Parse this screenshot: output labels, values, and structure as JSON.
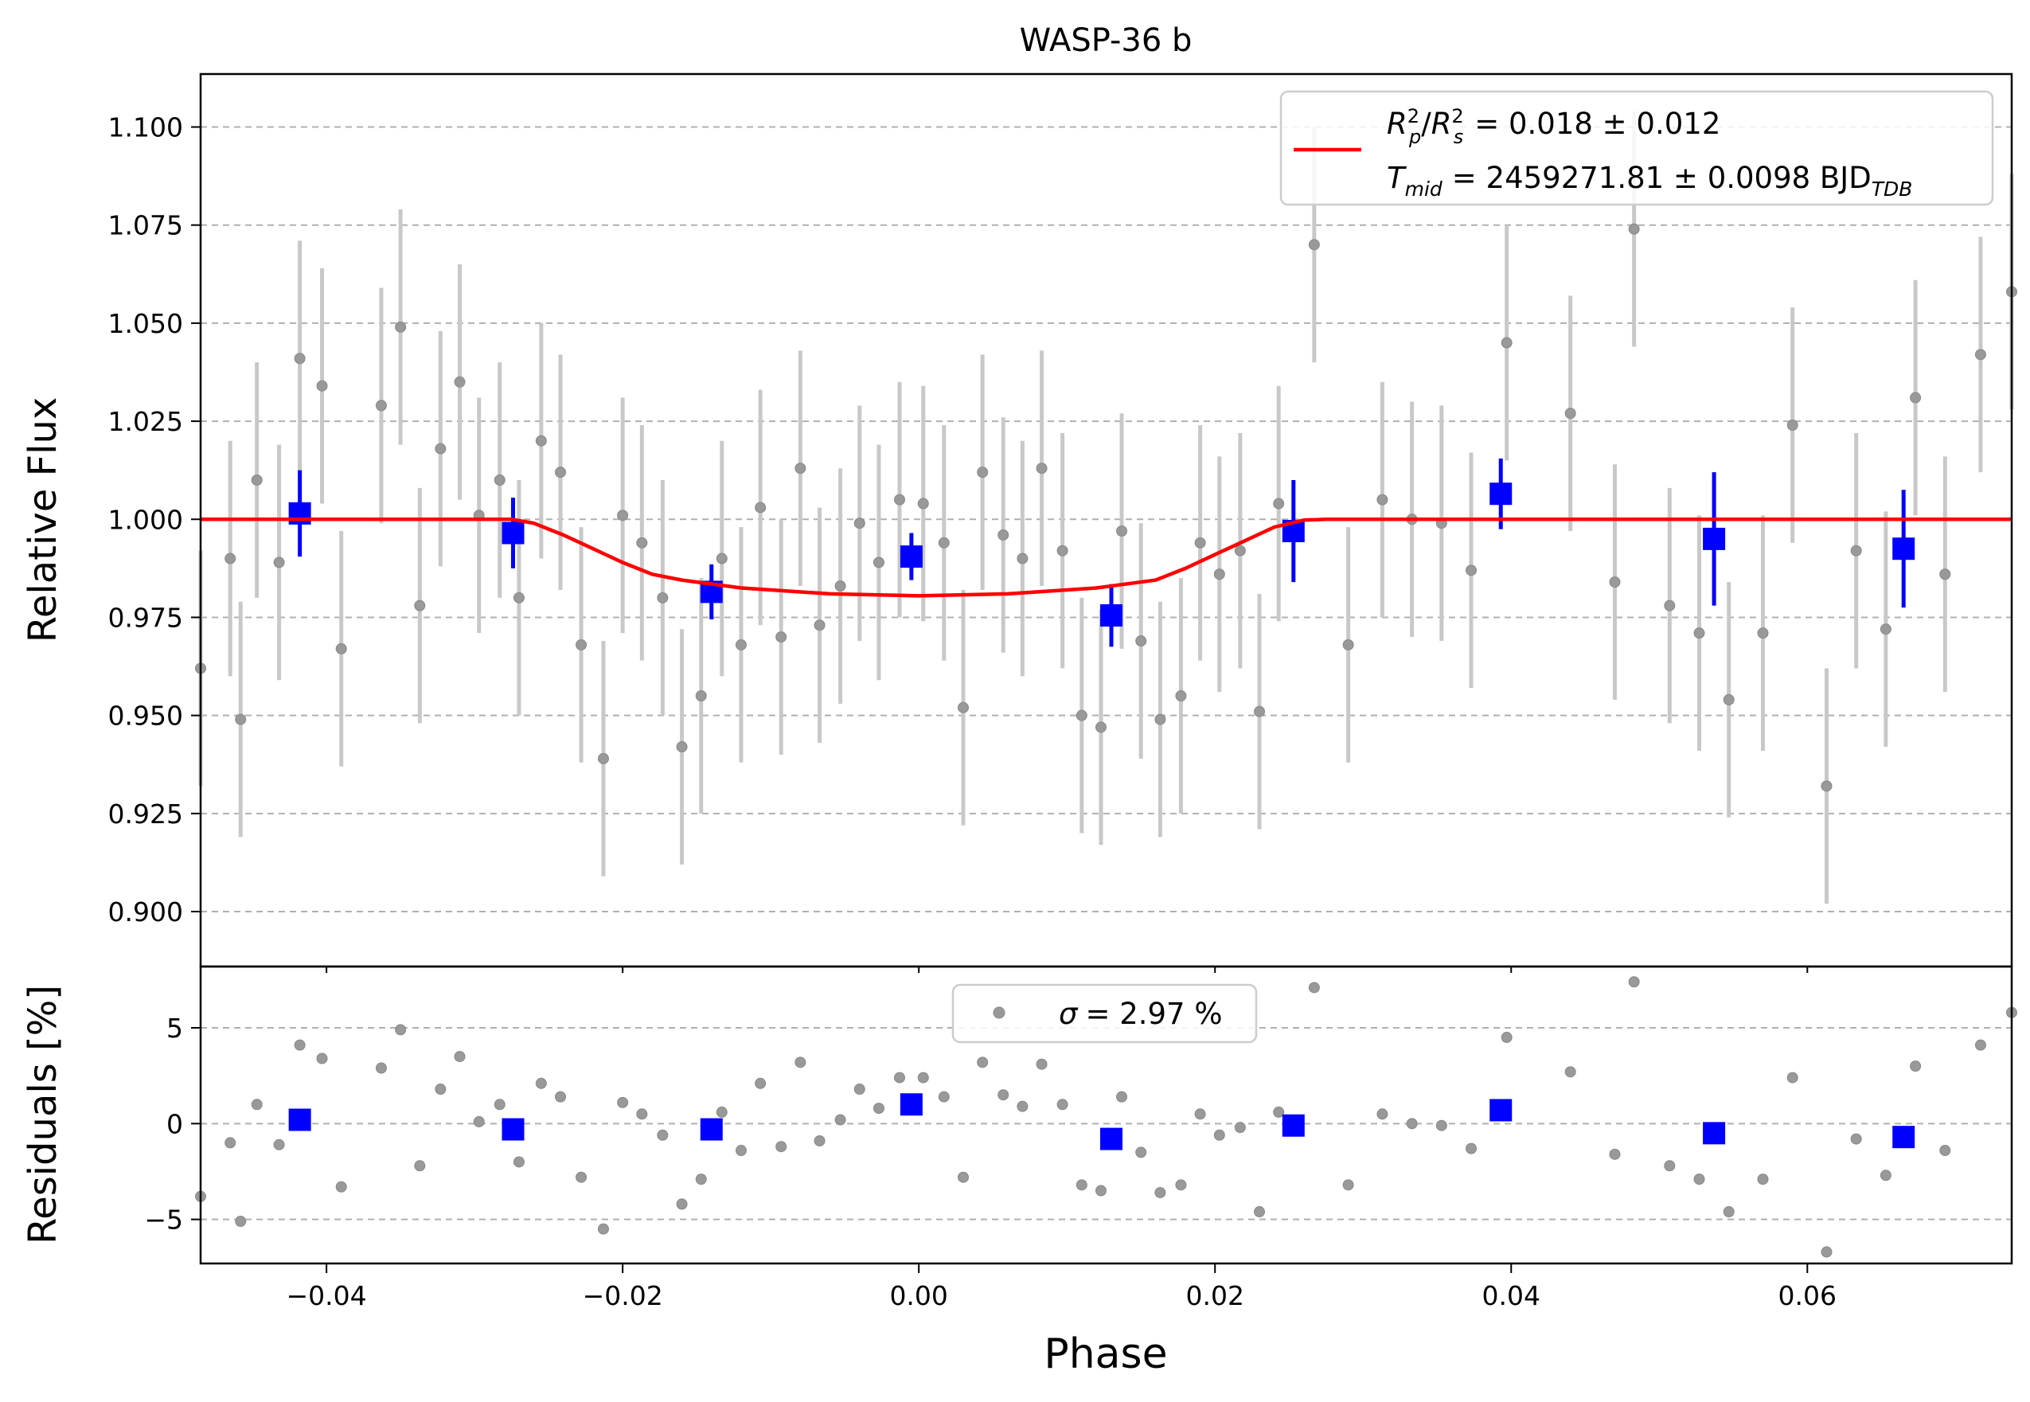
{
  "chart_data": [
    {
      "type": "scatter",
      "title": "WASP-36 b",
      "xlabel": "",
      "ylabel": "Relative Flux",
      "xlim": [
        -0.0485,
        0.0738
      ],
      "ylim": [
        0.886,
        1.1135
      ],
      "grid": "horizontal-dashed",
      "legend_position": "top-right",
      "xticks": [
        -0.04,
        -0.02,
        0.0,
        0.02,
        0.04,
        0.06
      ],
      "yticks": [
        0.9,
        0.925,
        0.95,
        0.975,
        1.0,
        1.025,
        1.05,
        1.075,
        1.1
      ],
      "ytick_labels": [
        "0.900",
        "0.925",
        "0.950",
        "0.975",
        "1.000",
        "1.025",
        "1.050",
        "1.075",
        "1.100"
      ],
      "legend_line1": "= 0.018 ± 0.012",
      "legend_line2": "= 2459271.81 ± 0.0098 BJD",
      "legend_sub": "TDB",
      "raw_color": "#999999",
      "raw_err_color": "#c8c8c8",
      "binned_color": "#0000ff",
      "model_color": "#ff0000",
      "raw_points": [
        [
          -0.0485,
          0.962,
          0.03
        ],
        [
          -0.0465,
          0.99,
          0.03
        ],
        [
          -0.0458,
          0.949,
          0.03
        ],
        [
          -0.0447,
          1.01,
          0.03
        ],
        [
          -0.0432,
          0.989,
          0.03
        ],
        [
          -0.0418,
          1.041,
          0.03
        ],
        [
          -0.0403,
          1.034,
          0.03
        ],
        [
          -0.039,
          0.967,
          0.03
        ],
        [
          -0.0363,
          1.029,
          0.03
        ],
        [
          -0.035,
          1.049,
          0.03
        ],
        [
          -0.0337,
          0.978,
          0.03
        ],
        [
          -0.0323,
          1.018,
          0.03
        ],
        [
          -0.031,
          1.035,
          0.03
        ],
        [
          -0.0297,
          1.001,
          0.03
        ],
        [
          -0.0283,
          1.01,
          0.03
        ],
        [
          -0.027,
          0.98,
          0.03
        ],
        [
          -0.0255,
          1.02,
          0.03
        ],
        [
          -0.0242,
          1.012,
          0.03
        ],
        [
          -0.0228,
          0.968,
          0.03
        ],
        [
          -0.0213,
          0.939,
          0.03
        ],
        [
          -0.02,
          1.001,
          0.03
        ],
        [
          -0.0187,
          0.994,
          0.03
        ],
        [
          -0.0173,
          0.98,
          0.03
        ],
        [
          -0.016,
          0.942,
          0.03
        ],
        [
          -0.0147,
          0.955,
          0.03
        ],
        [
          -0.0133,
          0.99,
          0.03
        ],
        [
          -0.012,
          0.968,
          0.03
        ],
        [
          -0.0107,
          1.003,
          0.03
        ],
        [
          -0.0093,
          0.97,
          0.03
        ],
        [
          -0.008,
          1.013,
          0.03
        ],
        [
          -0.0067,
          0.973,
          0.03
        ],
        [
          -0.0053,
          0.983,
          0.03
        ],
        [
          -0.004,
          0.999,
          0.03
        ],
        [
          -0.0027,
          0.989,
          0.03
        ],
        [
          -0.0013,
          1.005,
          0.03
        ],
        [
          0.0003,
          1.004,
          0.03
        ],
        [
          0.0017,
          0.994,
          0.03
        ],
        [
          0.003,
          0.952,
          0.03
        ],
        [
          0.0043,
          1.012,
          0.03
        ],
        [
          0.0057,
          0.996,
          0.03
        ],
        [
          0.007,
          0.99,
          0.03
        ],
        [
          0.0083,
          1.013,
          0.03
        ],
        [
          0.0097,
          0.992,
          0.03
        ],
        [
          0.011,
          0.95,
          0.03
        ],
        [
          0.0123,
          0.947,
          0.03
        ],
        [
          0.0137,
          0.997,
          0.03
        ],
        [
          0.015,
          0.969,
          0.03
        ],
        [
          0.0163,
          0.949,
          0.03
        ],
        [
          0.0177,
          0.955,
          0.03
        ],
        [
          0.019,
          0.994,
          0.03
        ],
        [
          0.0203,
          0.986,
          0.03
        ],
        [
          0.0217,
          0.992,
          0.03
        ],
        [
          0.023,
          0.951,
          0.03
        ],
        [
          0.0243,
          1.004,
          0.03
        ],
        [
          0.0267,
          1.07,
          0.03
        ],
        [
          0.029,
          0.968,
          0.03
        ],
        [
          0.0313,
          1.005,
          0.03
        ],
        [
          0.0333,
          1.0,
          0.03
        ],
        [
          0.0353,
          0.999,
          0.03
        ],
        [
          0.0373,
          0.987,
          0.03
        ],
        [
          0.0397,
          1.045,
          0.03
        ],
        [
          0.044,
          1.027,
          0.03
        ],
        [
          0.047,
          0.984,
          0.03
        ],
        [
          0.0483,
          1.074,
          0.03
        ],
        [
          0.0507,
          0.978,
          0.03
        ],
        [
          0.0527,
          0.971,
          0.03
        ],
        [
          0.0547,
          0.954,
          0.03
        ],
        [
          0.057,
          0.971,
          0.03
        ],
        [
          0.059,
          1.024,
          0.03
        ],
        [
          0.0613,
          0.932,
          0.03
        ],
        [
          0.0633,
          0.992,
          0.03
        ],
        [
          0.0653,
          0.972,
          0.03
        ],
        [
          0.0673,
          1.031,
          0.03
        ],
        [
          0.0693,
          0.986,
          0.03
        ],
        [
          0.0717,
          1.042,
          0.03
        ],
        [
          0.0738,
          1.058,
          0.03
        ]
      ],
      "binned_points": [
        [
          -0.0418,
          1.0015,
          0.011
        ],
        [
          -0.0274,
          0.9965,
          0.009
        ],
        [
          -0.014,
          0.9815,
          0.007
        ],
        [
          -0.0005,
          0.9905,
          0.006
        ],
        [
          0.013,
          0.9755,
          0.008
        ],
        [
          0.0253,
          0.997,
          0.013
        ],
        [
          0.0393,
          1.0065,
          0.009
        ],
        [
          0.0537,
          0.995,
          0.017
        ],
        [
          0.0665,
          0.9925,
          0.015
        ]
      ],
      "model_curve": [
        [
          -0.0485,
          1.0
        ],
        [
          -0.0275,
          1.0
        ],
        [
          -0.026,
          0.999
        ],
        [
          -0.024,
          0.996
        ],
        [
          -0.022,
          0.9925
        ],
        [
          -0.02,
          0.989
        ],
        [
          -0.018,
          0.986
        ],
        [
          -0.016,
          0.9845
        ],
        [
          -0.012,
          0.9825
        ],
        [
          -0.006,
          0.981
        ],
        [
          0.0,
          0.9805
        ],
        [
          0.006,
          0.981
        ],
        [
          0.012,
          0.9825
        ],
        [
          0.016,
          0.9845
        ],
        [
          0.018,
          0.9875
        ],
        [
          0.02,
          0.991
        ],
        [
          0.022,
          0.9945
        ],
        [
          0.024,
          0.998
        ],
        [
          0.026,
          0.9998
        ],
        [
          0.0275,
          1.0
        ],
        [
          0.0738,
          1.0
        ]
      ]
    },
    {
      "type": "scatter",
      "title": "",
      "xlabel": "Phase",
      "ylabel": "Residuals [%]",
      "xlim": [
        -0.0485,
        0.0738
      ],
      "ylim": [
        -7.3,
        8.2
      ],
      "grid": "horizontal-dashed",
      "legend_position": "top-center",
      "legend_label": "= 2.97 %",
      "xticks": [
        -0.04,
        -0.02,
        0.0,
        0.02,
        0.04,
        0.06
      ],
      "xtick_labels": [
        "−0.04",
        "−0.02",
        "0.00",
        "0.02",
        "0.04",
        "0.06"
      ],
      "yticks": [
        -5,
        0,
        5
      ],
      "ytick_labels": [
        "−5",
        "0",
        "5"
      ],
      "residual_points": [
        [
          -0.0485,
          -3.8
        ],
        [
          -0.0465,
          -1.0
        ],
        [
          -0.0458,
          -5.1
        ],
        [
          -0.0447,
          1.0
        ],
        [
          -0.0432,
          -1.1
        ],
        [
          -0.0418,
          4.1
        ],
        [
          -0.0403,
          3.4
        ],
        [
          -0.039,
          -3.3
        ],
        [
          -0.0363,
          2.9
        ],
        [
          -0.035,
          4.9
        ],
        [
          -0.0337,
          -2.2
        ],
        [
          -0.0323,
          1.8
        ],
        [
          -0.031,
          3.5
        ],
        [
          -0.0297,
          0.1
        ],
        [
          -0.0283,
          1.0
        ],
        [
          -0.027,
          -2.0
        ],
        [
          -0.0255,
          2.1
        ],
        [
          -0.0242,
          1.4
        ],
        [
          -0.0228,
          -2.8
        ],
        [
          -0.0213,
          -5.5
        ],
        [
          -0.02,
          1.1
        ],
        [
          -0.0187,
          0.5
        ],
        [
          -0.0173,
          -0.6
        ],
        [
          -0.016,
          -4.2
        ],
        [
          -0.0147,
          -2.9
        ],
        [
          -0.0133,
          0.6
        ],
        [
          -0.012,
          -1.4
        ],
        [
          -0.0107,
          2.1
        ],
        [
          -0.0093,
          -1.2
        ],
        [
          -0.008,
          3.2
        ],
        [
          -0.0067,
          -0.9
        ],
        [
          -0.0053,
          0.2
        ],
        [
          -0.004,
          1.8
        ],
        [
          -0.0027,
          0.8
        ],
        [
          -0.0013,
          2.4
        ],
        [
          0.0003,
          2.4
        ],
        [
          0.0017,
          1.4
        ],
        [
          0.003,
          -2.8
        ],
        [
          0.0043,
          3.2
        ],
        [
          0.0057,
          1.5
        ],
        [
          0.007,
          0.9
        ],
        [
          0.0083,
          3.1
        ],
        [
          0.0097,
          1.0
        ],
        [
          0.011,
          -3.2
        ],
        [
          0.0123,
          -3.5
        ],
        [
          0.0137,
          1.4
        ],
        [
          0.015,
          -1.5
        ],
        [
          0.0163,
          -3.6
        ],
        [
          0.0177,
          -3.2
        ],
        [
          0.019,
          0.5
        ],
        [
          0.0203,
          -0.6
        ],
        [
          0.0217,
          -0.2
        ],
        [
          0.023,
          -4.6
        ],
        [
          0.0243,
          0.6
        ],
        [
          0.0267,
          7.1
        ],
        [
          0.029,
          -3.2
        ],
        [
          0.0313,
          0.5
        ],
        [
          0.0333,
          0.0
        ],
        [
          0.0353,
          -0.1
        ],
        [
          0.0373,
          -1.3
        ],
        [
          0.0397,
          4.5
        ],
        [
          0.044,
          2.7
        ],
        [
          0.047,
          -1.6
        ],
        [
          0.0483,
          7.4
        ],
        [
          0.0507,
          -2.2
        ],
        [
          0.0527,
          -2.9
        ],
        [
          0.0547,
          -4.6
        ],
        [
          0.057,
          -2.9
        ],
        [
          0.059,
          2.4
        ],
        [
          0.0613,
          -6.7
        ],
        [
          0.0633,
          -0.8
        ],
        [
          0.0653,
          -2.7
        ],
        [
          0.0673,
          3.0
        ],
        [
          0.0693,
          -1.4
        ],
        [
          0.0717,
          4.1
        ],
        [
          0.0738,
          5.8
        ]
      ],
      "binned_residuals": [
        [
          -0.0418,
          0.2
        ],
        [
          -0.0274,
          -0.3
        ],
        [
          -0.014,
          -0.3
        ],
        [
          -0.0005,
          1.0
        ],
        [
          0.013,
          -0.8
        ],
        [
          0.0253,
          -0.1
        ],
        [
          0.0393,
          0.7
        ],
        [
          0.0537,
          -0.5
        ],
        [
          0.0665,
          -0.7
        ]
      ]
    }
  ]
}
